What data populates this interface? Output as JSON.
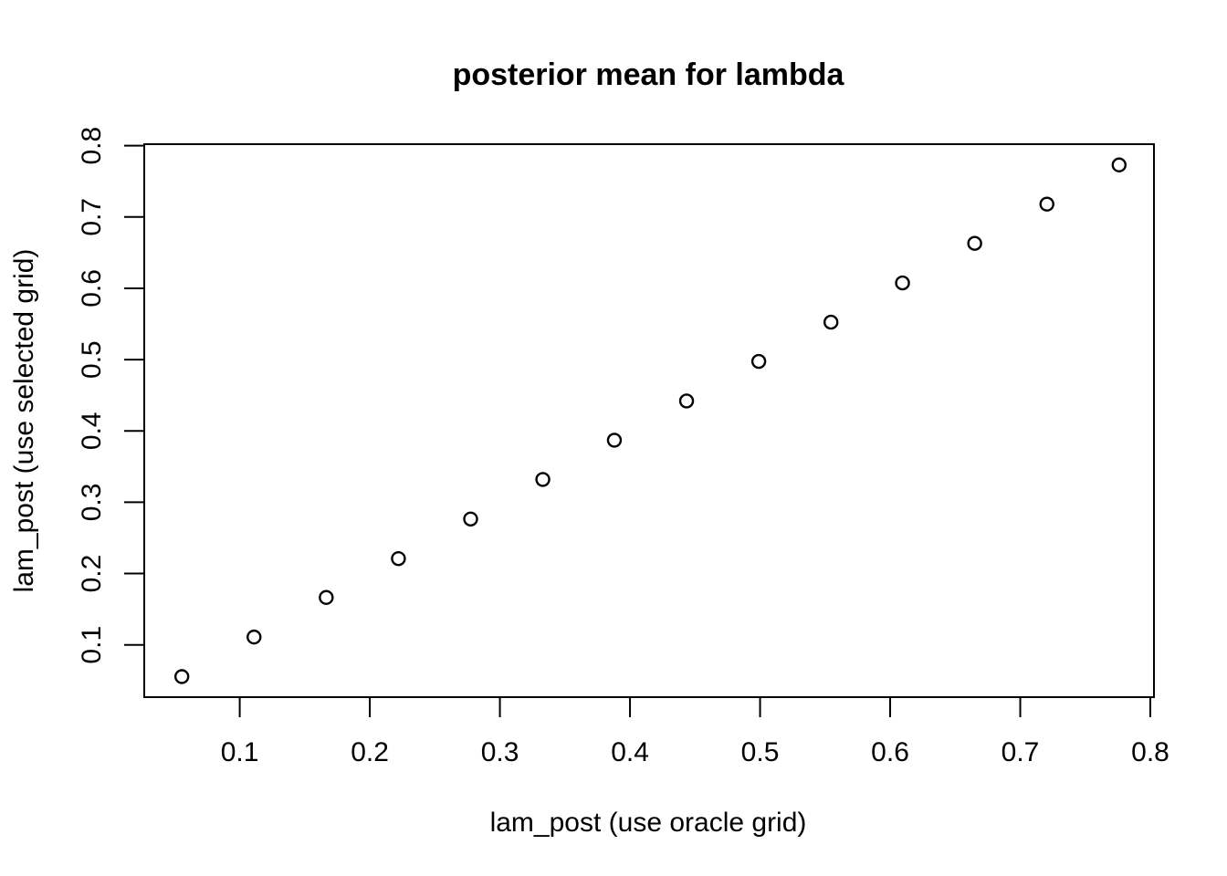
{
  "chart_data": {
    "type": "scatter",
    "title": "posterior mean for lambda",
    "xlabel": "lam_post (use oracle grid)",
    "ylabel": "lam_post (use selected grid)",
    "x_ticks": [
      0.1,
      0.2,
      0.3,
      0.4,
      0.5,
      0.6,
      0.7,
      0.8
    ],
    "x_tick_labels": [
      "0.1",
      "0.2",
      "0.3",
      "0.4",
      "0.5",
      "0.6",
      "0.7",
      "0.8"
    ],
    "y_ticks": [
      0.1,
      0.2,
      0.3,
      0.4,
      0.5,
      0.6,
      0.7,
      0.8
    ],
    "y_tick_labels": [
      "0.1",
      "0.2",
      "0.3",
      "0.4",
      "0.5",
      "0.6",
      "0.7",
      "0.8"
    ],
    "xlim": [
      0.0266,
      0.8028
    ],
    "ylim": [
      0.0267,
      0.8021
    ],
    "grid": false,
    "marker": "open-circle",
    "point_color": "#000000",
    "points": [
      {
        "x": 0.0555,
        "y": 0.0555
      },
      {
        "x": 0.111,
        "y": 0.111
      },
      {
        "x": 0.1665,
        "y": 0.1665
      },
      {
        "x": 0.222,
        "y": 0.221
      },
      {
        "x": 0.2775,
        "y": 0.2765
      },
      {
        "x": 0.333,
        "y": 0.332
      },
      {
        "x": 0.388,
        "y": 0.387
      },
      {
        "x": 0.4435,
        "y": 0.442
      },
      {
        "x": 0.499,
        "y": 0.4975
      },
      {
        "x": 0.5545,
        "y": 0.5525
      },
      {
        "x": 0.6095,
        "y": 0.6075
      },
      {
        "x": 0.665,
        "y": 0.663
      },
      {
        "x": 0.7205,
        "y": 0.718
      },
      {
        "x": 0.776,
        "y": 0.773
      }
    ]
  }
}
